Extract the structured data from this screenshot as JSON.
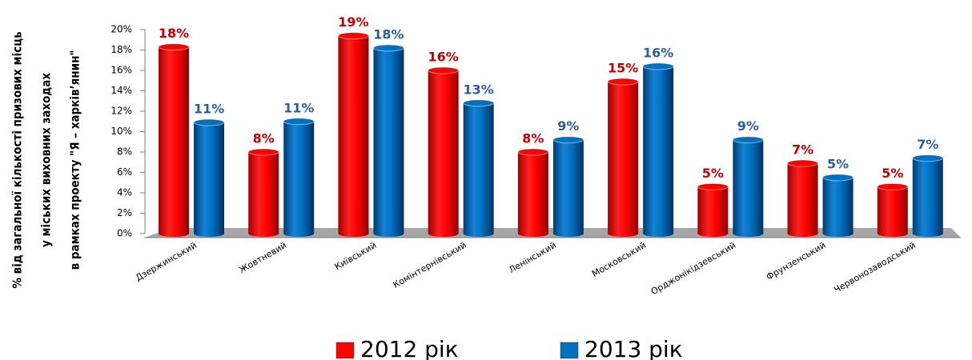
{
  "chart_data": {
    "type": "bar",
    "ylabel_lines": [
      "% від загальної кількості призових місць",
      "у міських виховних заходах",
      "в рамках проекту \"Я – харків’янин\""
    ],
    "categories": [
      "Дзержинський",
      "Жовтневий",
      "Київський",
      "Комінтернівський",
      "Ленінський",
      "Московський",
      "Орджонікідзевський",
      "Фрунзенський",
      "Червонозаводський"
    ],
    "series": [
      {
        "name": "2012 рік",
        "color": "#ff0000",
        "label_color": "#c00000",
        "values": [
          18.3,
          8.0,
          19.4,
          16.0,
          8.0,
          14.9,
          4.6,
          6.9,
          4.6
        ],
        "value_labels": [
          "18%",
          "8%",
          "19%",
          "16%",
          "8%",
          "15%",
          "5%",
          "7%",
          "5%"
        ]
      },
      {
        "name": "2013 рік",
        "color": "#0070c0",
        "label_color": "#2e5c9a",
        "values": [
          10.9,
          11.0,
          18.2,
          12.8,
          9.2,
          16.4,
          9.2,
          5.5,
          7.4
        ],
        "value_labels": [
          "11%",
          "11%",
          "18%",
          "13%",
          "9%",
          "16%",
          "9%",
          "5%",
          "7%"
        ]
      }
    ],
    "ylim": [
      0,
      20
    ],
    "yticks": [
      {
        "value": 0,
        "label": "0%"
      },
      {
        "value": 2,
        "label": "2%"
      },
      {
        "value": 4,
        "label": "4%"
      },
      {
        "value": 6,
        "label": "6%"
      },
      {
        "value": 8,
        "label": "8%"
      },
      {
        "value": 10,
        "label": "10%"
      },
      {
        "value": 12,
        "label": "12%"
      },
      {
        "value": 14,
        "label": "14%"
      },
      {
        "value": 16,
        "label": "16%"
      },
      {
        "value": 18,
        "label": "18%"
      },
      {
        "value": 20,
        "label": "20%"
      }
    ],
    "legend": "bottom"
  }
}
